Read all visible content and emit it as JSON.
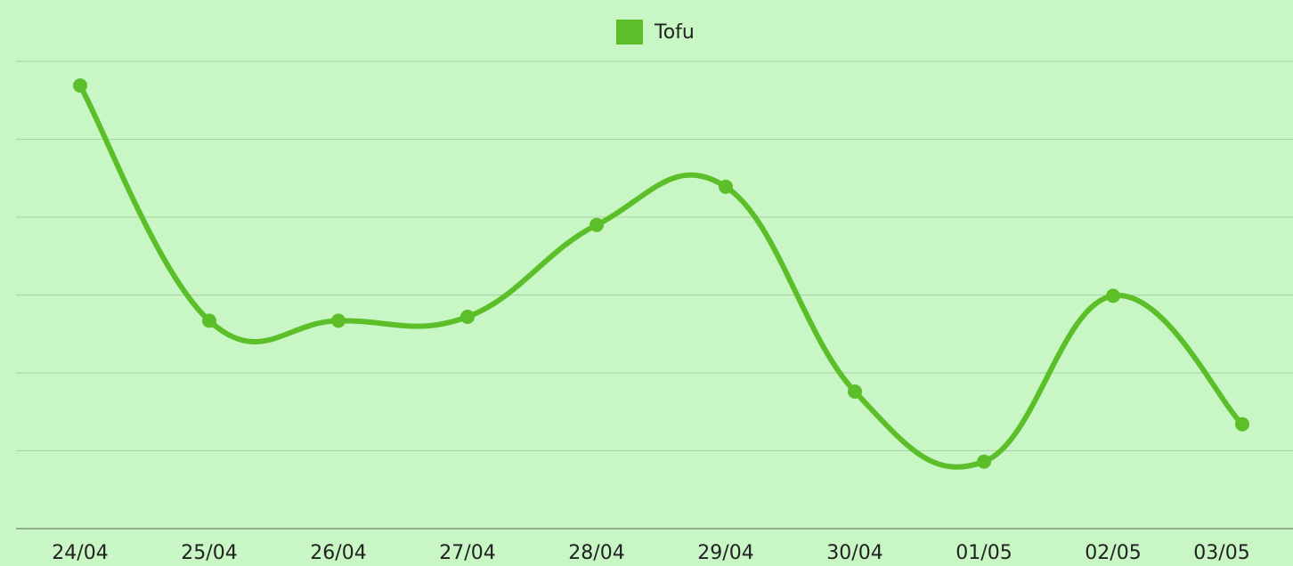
{
  "chart_data": {
    "type": "line",
    "categories": [
      "24/04",
      "25/04",
      "26/04",
      "27/04",
      "28/04",
      "29/04",
      "30/04",
      "01/05",
      "02/05",
      "03/05"
    ],
    "series": [
      {
        "name": "Tofu",
        "color": "#5cbf2a",
        "values": [
          5.69,
          2.67,
          2.67,
          2.72,
          3.9,
          4.39,
          1.76,
          0.86,
          2.99,
          1.34
        ]
      }
    ],
    "ylim": [
      0,
      6
    ],
    "yticks": [
      0,
      1,
      2,
      3,
      4,
      5,
      6
    ],
    "grid": true,
    "legend": "top"
  }
}
